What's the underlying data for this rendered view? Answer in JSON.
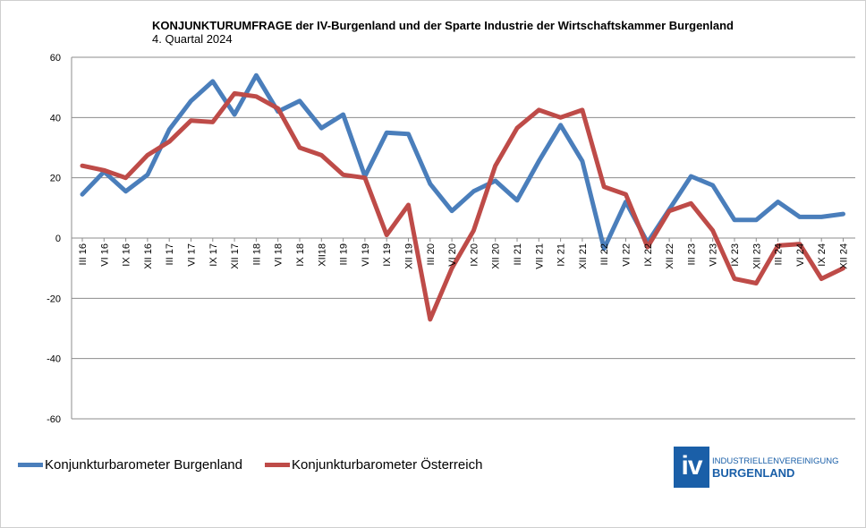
{
  "header": {
    "title": "KONJUNKTURUMFRAGE der IV-Burgenland und der Sparte Industrie der Wirtschaftskammer Burgenland",
    "subtitle": "4. Quartal 2024"
  },
  "chart_data": {
    "type": "line",
    "title": "KONJUNKTURUMFRAGE der IV-Burgenland und der Sparte Industrie der Wirtschaftskammer Burgenland",
    "subtitle": "4. Quartal 2024",
    "xlabel": "",
    "ylabel": "",
    "ylim": [
      -60,
      60
    ],
    "yticks": [
      60,
      40,
      20,
      0,
      -20,
      -40,
      -60
    ],
    "grid": true,
    "legend_position": "bottom-left",
    "categories": [
      "III 16",
      "VI 16",
      "IX 16",
      "XII 16",
      "III 17",
      "VI 17",
      "IX 17",
      "XII 17",
      "III 18",
      "VI 18",
      "IX 18",
      "XII18",
      "III 19",
      "VI 19",
      "IX 19",
      "XII 19",
      "III 20",
      "VI 20",
      "IX 20",
      "XII 20",
      "III 21",
      "VII 21",
      "IX 21",
      "XII 21",
      "III 22",
      "VI 22",
      "IX 22",
      "XII 22",
      "III 23",
      "VI 23",
      "IX 23",
      "XII 23",
      "III 24",
      "VI 24",
      "IX 24",
      "XII 24"
    ],
    "series": [
      {
        "name": "Konjunkturbarometer Burgenland",
        "color": "#4a7ebb",
        "values": [
          14.5,
          22,
          15.5,
          21,
          36,
          45.5,
          52,
          41,
          54,
          42,
          45.5,
          36.5,
          41,
          20.5,
          35,
          34.5,
          18,
          9,
          15.5,
          19,
          12.5,
          25.5,
          37.5,
          25.5,
          -3.5,
          12,
          -1.5,
          9.5,
          20.5,
          17.5,
          6,
          6,
          12,
          7,
          7,
          8
        ]
      },
      {
        "name": "Konjunkturbarometer Österreich",
        "color": "#be4b48",
        "values": [
          24,
          22.5,
          20,
          27.5,
          32,
          39,
          38.5,
          48,
          47,
          43,
          30,
          27.5,
          21,
          20,
          1,
          11,
          -27,
          -10,
          2.5,
          24,
          36.5,
          42.5,
          40,
          42.5,
          17,
          14.5,
          -3,
          9,
          11.5,
          2.5,
          -13.5,
          -15,
          -2.5,
          -2,
          -13.5,
          -10
        ]
      }
    ]
  },
  "legend": {
    "items": [
      {
        "label": "Konjunkturbarometer Burgenland",
        "color": "#4a7ebb"
      },
      {
        "label": "Konjunkturbarometer Österreich",
        "color": "#be4b48"
      }
    ]
  },
  "logo": {
    "mark": "iv",
    "line1": "INDUSTRIELLENVEREINIGUNG",
    "line2": "BURGENLAND",
    "color": "#1a5fa8"
  }
}
